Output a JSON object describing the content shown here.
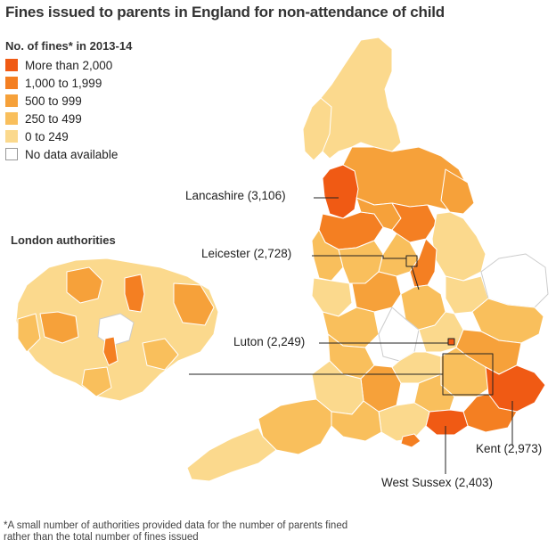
{
  "title": "Fines issued to parents in England for non-attendance of child",
  "legend": {
    "title": "No. of fines* in 2013-14",
    "items": [
      {
        "label": "More than 2,000",
        "color": "#f05a14"
      },
      {
        "label": "1,000 to 1,999",
        "color": "#f47f22"
      },
      {
        "label": "500 to 999",
        "color": "#f6a13a"
      },
      {
        "label": "250 to 499",
        "color": "#f9bf5c"
      },
      {
        "label": "0 to 249",
        "color": "#fbd98d"
      },
      {
        "label": "No data available",
        "color": "#ffffff"
      }
    ]
  },
  "london_title": "London authorities",
  "callouts": {
    "lancashire": "Lancashire (3,106)",
    "leicester": "Leicester (2,728)",
    "luton": "Luton (2,249)",
    "kent": "Kent (2,973)",
    "west_sussex": "West Sussex (2,403)"
  },
  "footnote": {
    "line1": "*A small number of authorities provided data for the number of parents fined",
    "line2": "rather than the total number of fines issued"
  }
}
